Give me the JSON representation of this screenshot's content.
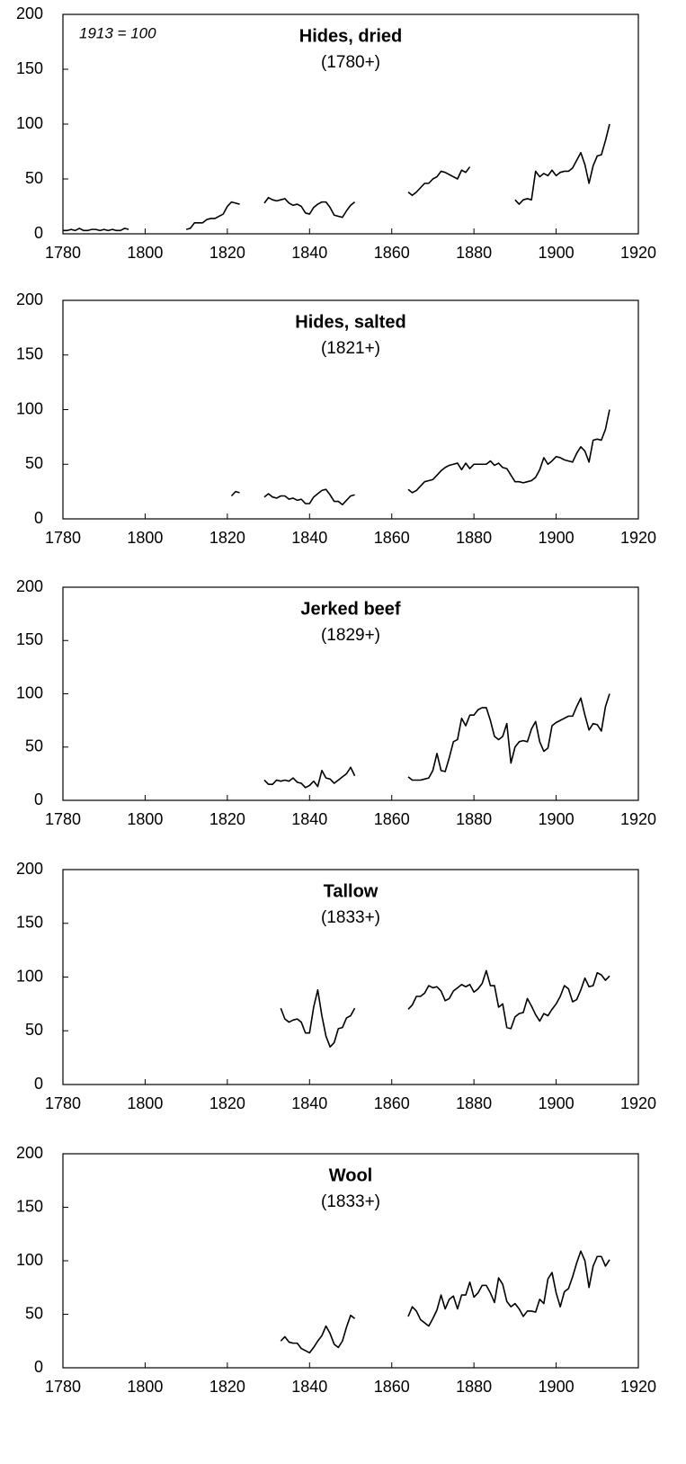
{
  "chart_data": [
    {
      "type": "line",
      "title": "Hides, dried",
      "subtitle": "(1780+)",
      "annotation": "1913 = 100",
      "color": "#000000",
      "xlim": [
        1780,
        1920
      ],
      "xticks": [
        1780,
        1800,
        1820,
        1840,
        1860,
        1880,
        1900,
        1920
      ],
      "ylim": [
        0,
        200
      ],
      "yticks": [
        0,
        50,
        100,
        150,
        200
      ],
      "x": [
        1780,
        1781,
        1782,
        1783,
        1784,
        1785,
        1786,
        1787,
        1788,
        1789,
        1790,
        1791,
        1792,
        1793,
        1794,
        1795,
        1796,
        1800,
        1810,
        1811,
        1812,
        1813,
        1814,
        1815,
        1816,
        1817,
        1818,
        1819,
        1820,
        1821,
        1822,
        1823,
        1826,
        1829,
        1830,
        1831,
        1832,
        1833,
        1834,
        1835,
        1836,
        1837,
        1838,
        1839,
        1840,
        1841,
        1842,
        1843,
        1844,
        1845,
        1846,
        1847,
        1848,
        1849,
        1850,
        1851,
        1858,
        1864,
        1865,
        1866,
        1867,
        1868,
        1869,
        1870,
        1871,
        1872,
        1873,
        1874,
        1875,
        1876,
        1877,
        1878,
        1879,
        1885,
        1890,
        1891,
        1892,
        1893,
        1894,
        1895,
        1896,
        1897,
        1898,
        1899,
        1900,
        1901,
        1902,
        1903,
        1904,
        1905,
        1906,
        1907,
        1908,
        1909,
        1910,
        1911,
        1912,
        1913
      ],
      "values": [
        3,
        3,
        4,
        3,
        5,
        3,
        3,
        4,
        4,
        3,
        4,
        3,
        4,
        3,
        3,
        5,
        4,
        null,
        4,
        5,
        10,
        10,
        10,
        13,
        14,
        14,
        16,
        18,
        25,
        29,
        28,
        27,
        null,
        28,
        33,
        31,
        30,
        31,
        32,
        28,
        26,
        27,
        25,
        19,
        18,
        24,
        27,
        29,
        29,
        24,
        17,
        16,
        15,
        21,
        26,
        29,
        null,
        38,
        35,
        38,
        42,
        46,
        46,
        50,
        52,
        57,
        56,
        54,
        52,
        50,
        58,
        56,
        61,
        null,
        31,
        27,
        31,
        32,
        31,
        57,
        52,
        55,
        53,
        58,
        53,
        56,
        57,
        57,
        60,
        67,
        74,
        63,
        46,
        62,
        71,
        72,
        85,
        100
      ]
    },
    {
      "type": "line",
      "title": "Hides, salted",
      "subtitle": "(1821+)",
      "color": "#000000",
      "xlim": [
        1780,
        1920
      ],
      "xticks": [
        1780,
        1800,
        1820,
        1840,
        1860,
        1880,
        1900,
        1920
      ],
      "ylim": [
        0,
        200
      ],
      "yticks": [
        0,
        50,
        100,
        150,
        200
      ],
      "x": [
        1821,
        1822,
        1823,
        1826,
        1829,
        1830,
        1831,
        1832,
        1833,
        1834,
        1835,
        1836,
        1837,
        1838,
        1839,
        1840,
        1841,
        1842,
        1843,
        1844,
        1845,
        1846,
        1847,
        1848,
        1849,
        1850,
        1851,
        1858,
        1864,
        1865,
        1866,
        1867,
        1868,
        1869,
        1870,
        1871,
        1872,
        1873,
        1874,
        1875,
        1876,
        1877,
        1878,
        1879,
        1880,
        1881,
        1882,
        1883,
        1884,
        1885,
        1886,
        1887,
        1888,
        1889,
        1890,
        1891,
        1892,
        1893,
        1894,
        1895,
        1896,
        1897,
        1898,
        1899,
        1900,
        1901,
        1902,
        1903,
        1904,
        1905,
        1906,
        1907,
        1908,
        1909,
        1910,
        1911,
        1912,
        1913
      ],
      "values": [
        21,
        25,
        24,
        null,
        20,
        23,
        20,
        19,
        21,
        21,
        18,
        19,
        17,
        18,
        14,
        14,
        20,
        23,
        26,
        27,
        22,
        16,
        16,
        13,
        17,
        21,
        22,
        null,
        27,
        24,
        26,
        30,
        34,
        35,
        36,
        40,
        44,
        47,
        49,
        50,
        51,
        45,
        51,
        46,
        50,
        50,
        50,
        50,
        53,
        49,
        51,
        47,
        46,
        40,
        34,
        34,
        33,
        34,
        35,
        38,
        45,
        56,
        50,
        53,
        57,
        56,
        54,
        53,
        52,
        60,
        66,
        62,
        52,
        72,
        73,
        72,
        82,
        100
      ]
    },
    {
      "type": "line",
      "title": "Jerked beef",
      "subtitle": "(1829+)",
      "color": "#000000",
      "xlim": [
        1780,
        1920
      ],
      "xticks": [
        1780,
        1800,
        1820,
        1840,
        1860,
        1880,
        1900,
        1920
      ],
      "ylim": [
        0,
        200
      ],
      "yticks": [
        0,
        50,
        100,
        150,
        200
      ],
      "x": [
        1829,
        1830,
        1831,
        1832,
        1833,
        1834,
        1835,
        1836,
        1837,
        1838,
        1839,
        1840,
        1841,
        1842,
        1843,
        1844,
        1845,
        1846,
        1847,
        1848,
        1849,
        1850,
        1851,
        1858,
        1864,
        1865,
        1866,
        1867,
        1868,
        1869,
        1870,
        1871,
        1872,
        1873,
        1874,
        1875,
        1876,
        1877,
        1878,
        1879,
        1880,
        1881,
        1882,
        1883,
        1884,
        1885,
        1886,
        1887,
        1888,
        1889,
        1890,
        1891,
        1892,
        1893,
        1894,
        1895,
        1896,
        1897,
        1898,
        1899,
        1900,
        1901,
        1902,
        1903,
        1904,
        1905,
        1906,
        1907,
        1908,
        1909,
        1910,
        1911,
        1912,
        1913
      ],
      "values": [
        19,
        15,
        15,
        19,
        18,
        19,
        18,
        21,
        17,
        16,
        12,
        14,
        18,
        13,
        28,
        21,
        20,
        16,
        19,
        22,
        25,
        31,
        23,
        null,
        22,
        19,
        19,
        19,
        20,
        21,
        28,
        44,
        28,
        27,
        40,
        55,
        57,
        77,
        70,
        80,
        80,
        85,
        87,
        87,
        75,
        60,
        57,
        60,
        72,
        35,
        50,
        55,
        56,
        55,
        67,
        74,
        55,
        46,
        49,
        70,
        73,
        75,
        77,
        79,
        79,
        88,
        96,
        80,
        66,
        72,
        71,
        65,
        88,
        100
      ]
    },
    {
      "type": "line",
      "title": "Tallow",
      "subtitle": "(1833+)",
      "color": "#000000",
      "xlim": [
        1780,
        1920
      ],
      "xticks": [
        1780,
        1800,
        1820,
        1840,
        1860,
        1880,
        1900,
        1920
      ],
      "ylim": [
        0,
        200
      ],
      "yticks": [
        0,
        50,
        100,
        150,
        200
      ],
      "x": [
        1833,
        1834,
        1835,
        1836,
        1837,
        1838,
        1839,
        1840,
        1841,
        1842,
        1843,
        1844,
        1845,
        1846,
        1847,
        1848,
        1849,
        1850,
        1851,
        1858,
        1864,
        1865,
        1866,
        1867,
        1868,
        1869,
        1870,
        1871,
        1872,
        1873,
        1874,
        1875,
        1876,
        1877,
        1878,
        1879,
        1880,
        1881,
        1882,
        1883,
        1884,
        1885,
        1886,
        1887,
        1888,
        1889,
        1890,
        1891,
        1892,
        1893,
        1894,
        1895,
        1896,
        1897,
        1898,
        1899,
        1900,
        1901,
        1902,
        1903,
        1904,
        1905,
        1906,
        1907,
        1908,
        1909,
        1910,
        1911,
        1912,
        1913
      ],
      "values": [
        71,
        61,
        58,
        60,
        61,
        58,
        48,
        48,
        72,
        88,
        64,
        45,
        35,
        39,
        52,
        53,
        62,
        64,
        71,
        null,
        70,
        74,
        82,
        82,
        85,
        92,
        90,
        91,
        87,
        78,
        80,
        87,
        90,
        93,
        91,
        93,
        86,
        89,
        94,
        106,
        92,
        92,
        72,
        75,
        53,
        52,
        63,
        66,
        67,
        80,
        73,
        65,
        59,
        66,
        64,
        70,
        75,
        82,
        92,
        89,
        77,
        79,
        88,
        99,
        91,
        92,
        104,
        102,
        97,
        101
      ]
    },
    {
      "type": "line",
      "title": "Wool",
      "subtitle": "(1833+)",
      "color": "#000000",
      "xlim": [
        1780,
        1920
      ],
      "xticks": [
        1780,
        1800,
        1820,
        1840,
        1860,
        1880,
        1900,
        1920
      ],
      "ylim": [
        0,
        200
      ],
      "yticks": [
        0,
        50,
        100,
        150,
        200
      ],
      "x": [
        1833,
        1834,
        1835,
        1836,
        1837,
        1838,
        1839,
        1840,
        1841,
        1842,
        1843,
        1844,
        1845,
        1846,
        1847,
        1848,
        1849,
        1850,
        1851,
        1858,
        1864,
        1865,
        1866,
        1867,
        1868,
        1869,
        1870,
        1871,
        1872,
        1873,
        1874,
        1875,
        1876,
        1877,
        1878,
        1879,
        1880,
        1881,
        1882,
        1883,
        1884,
        1885,
        1886,
        1887,
        1888,
        1889,
        1890,
        1891,
        1892,
        1893,
        1894,
        1895,
        1896,
        1897,
        1898,
        1899,
        1900,
        1901,
        1902,
        1903,
        1904,
        1905,
        1906,
        1907,
        1908,
        1909,
        1910,
        1911,
        1912,
        1913
      ],
      "values": [
        25,
        29,
        24,
        23,
        23,
        18,
        16,
        14,
        19,
        25,
        30,
        39,
        32,
        22,
        19,
        25,
        38,
        49,
        46,
        null,
        48,
        57,
        53,
        45,
        42,
        39,
        46,
        54,
        68,
        55,
        64,
        67,
        55,
        68,
        68,
        80,
        66,
        70,
        77,
        77,
        70,
        61,
        84,
        78,
        62,
        57,
        60,
        55,
        48,
        53,
        53,
        52,
        64,
        60,
        83,
        89,
        70,
        57,
        71,
        74,
        85,
        98,
        109,
        100,
        75,
        95,
        104,
        104,
        95,
        101
      ]
    }
  ]
}
